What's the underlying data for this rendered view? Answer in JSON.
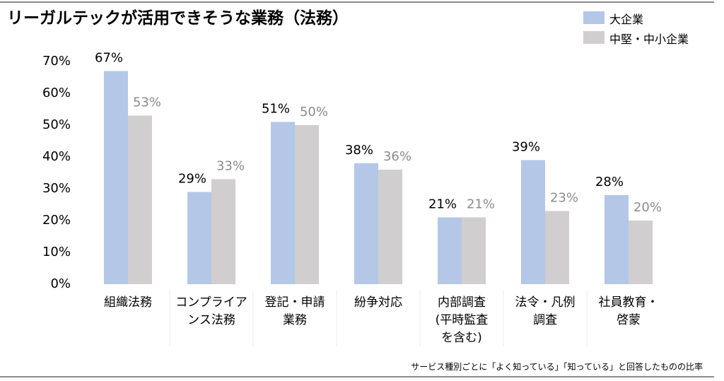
{
  "chart_data": {
    "type": "bar",
    "title": "リーガルテックが活用できそうな業務（法務）",
    "note": "サービス種別ごとに「よく知っている」「知っている」と回答したものの比率",
    "categories": [
      "組織法務",
      "コンプライア\nンス法務",
      "登記・申請\n業務",
      "紛争対応",
      "内部調査\n(平時監査\nを含む)",
      "法令・凡例\n調査",
      "社員教育・\n啓蒙"
    ],
    "series": [
      {
        "name": "大企業",
        "color": "#b4c7e7",
        "label_color": "#000000",
        "values": [
          67,
          29,
          51,
          38,
          21,
          39,
          28
        ],
        "value_labels": [
          "67%",
          "29%",
          "51%",
          "38%",
          "21%",
          "39%",
          "28%"
        ]
      },
      {
        "name": "中堅・中小企業",
        "color": "#d0cece",
        "label_color": "#8c8c8c",
        "values": [
          53,
          33,
          50,
          36,
          21,
          23,
          20
        ],
        "value_labels": [
          "53%",
          "33%",
          "50%",
          "36%",
          "21%",
          "23%",
          "20%"
        ]
      }
    ],
    "ylim": [
      0,
      70
    ],
    "yticks": [
      {
        "value": 0,
        "label": "0%"
      },
      {
        "value": 10,
        "label": "10%"
      },
      {
        "value": 20,
        "label": "20%"
      },
      {
        "value": 30,
        "label": "30%"
      },
      {
        "value": 40,
        "label": "40%"
      },
      {
        "value": 50,
        "label": "50%"
      },
      {
        "value": 60,
        "label": "60%"
      },
      {
        "value": 70,
        "label": "70%"
      }
    ],
    "grid": false
  }
}
